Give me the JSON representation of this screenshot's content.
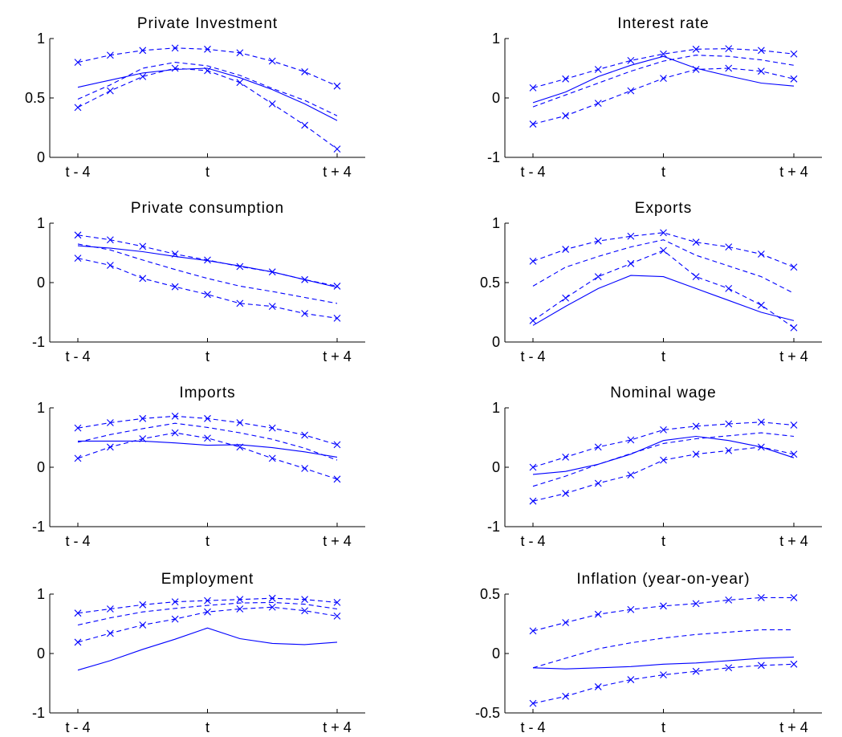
{
  "chart_data": [
    {
      "type": "line",
      "title": "Private Investment",
      "x": [
        -4,
        -3,
        -2,
        -1,
        0,
        1,
        2,
        3,
        4
      ],
      "xticks": [
        "t - 4",
        "t",
        "t + 4"
      ],
      "ylim": [
        0,
        1
      ],
      "yticks": [
        "0",
        "0.5",
        "1"
      ],
      "series": [
        {
          "style": "solid",
          "values": [
            0.59,
            0.65,
            0.71,
            0.74,
            0.75,
            0.67,
            0.57,
            0.45,
            0.31
          ]
        },
        {
          "style": "dashed",
          "values": [
            0.49,
            0.61,
            0.75,
            0.8,
            0.77,
            0.69,
            0.58,
            0.48,
            0.35
          ]
        },
        {
          "style": "dashed-x",
          "values": [
            0.8,
            0.86,
            0.9,
            0.92,
            0.91,
            0.88,
            0.81,
            0.72,
            0.6
          ]
        },
        {
          "style": "dashed-x",
          "values": [
            0.42,
            0.56,
            0.68,
            0.75,
            0.73,
            0.63,
            0.45,
            0.27,
            0.07
          ]
        }
      ]
    },
    {
      "type": "line",
      "title": "Interest rate",
      "x": [
        -4,
        -3,
        -2,
        -1,
        0,
        1,
        2,
        3,
        4
      ],
      "xticks": [
        "t - 4",
        "t",
        "t + 4"
      ],
      "ylim": [
        -1,
        1
      ],
      "yticks": [
        "-1",
        "0",
        "1"
      ],
      "series": [
        {
          "style": "solid",
          "values": [
            -0.08,
            0.1,
            0.36,
            0.55,
            0.7,
            0.5,
            0.37,
            0.25,
            0.2
          ]
        },
        {
          "style": "dashed",
          "values": [
            -0.15,
            0.05,
            0.25,
            0.45,
            0.62,
            0.72,
            0.7,
            0.64,
            0.55
          ]
        },
        {
          "style": "dashed-x",
          "values": [
            0.17,
            0.32,
            0.48,
            0.63,
            0.74,
            0.82,
            0.83,
            0.8,
            0.74
          ]
        },
        {
          "style": "dashed-x",
          "values": [
            -0.44,
            -0.3,
            -0.09,
            0.12,
            0.33,
            0.48,
            0.5,
            0.45,
            0.32
          ]
        }
      ]
    },
    {
      "type": "line",
      "title": "Private consumption",
      "x": [
        -4,
        -3,
        -2,
        -1,
        0,
        1,
        2,
        3,
        4
      ],
      "xticks": [
        "t - 4",
        "t",
        "t + 4"
      ],
      "ylim": [
        -1,
        1
      ],
      "yticks": [
        "-1",
        "0",
        "1"
      ],
      "series": [
        {
          "style": "solid",
          "values": [
            0.62,
            0.58,
            0.52,
            0.44,
            0.37,
            0.28,
            0.18,
            0.05,
            -0.08
          ]
        },
        {
          "style": "dashed",
          "values": [
            0.65,
            0.55,
            0.38,
            0.22,
            0.07,
            -0.06,
            -0.15,
            -0.25,
            -0.35
          ]
        },
        {
          "style": "dashed-x",
          "values": [
            0.8,
            0.72,
            0.61,
            0.48,
            0.38,
            0.27,
            0.18,
            0.05,
            -0.06
          ]
        },
        {
          "style": "dashed-x",
          "values": [
            0.41,
            0.29,
            0.07,
            -0.07,
            -0.2,
            -0.35,
            -0.4,
            -0.52,
            -0.6
          ]
        }
      ]
    },
    {
      "type": "line",
      "title": "Exports",
      "x": [
        -4,
        -3,
        -2,
        -1,
        0,
        1,
        2,
        3,
        4
      ],
      "xticks": [
        "t - 4",
        "t",
        "t + 4"
      ],
      "ylim": [
        0,
        1
      ],
      "yticks": [
        "0",
        "0.5",
        "1"
      ],
      "series": [
        {
          "style": "solid",
          "values": [
            0.14,
            0.3,
            0.45,
            0.56,
            0.55,
            0.45,
            0.35,
            0.25,
            0.18
          ]
        },
        {
          "style": "dashed",
          "values": [
            0.47,
            0.63,
            0.72,
            0.8,
            0.86,
            0.73,
            0.64,
            0.55,
            0.41
          ]
        },
        {
          "style": "dashed-x",
          "values": [
            0.68,
            0.78,
            0.85,
            0.89,
            0.92,
            0.84,
            0.8,
            0.74,
            0.63
          ]
        },
        {
          "style": "dashed-x",
          "values": [
            0.18,
            0.37,
            0.55,
            0.66,
            0.77,
            0.55,
            0.45,
            0.31,
            0.12
          ]
        }
      ]
    },
    {
      "type": "line",
      "title": "Imports",
      "x": [
        -4,
        -3,
        -2,
        -1,
        0,
        1,
        2,
        3,
        4
      ],
      "xticks": [
        "t - 4",
        "t",
        "t + 4"
      ],
      "ylim": [
        -1,
        1
      ],
      "yticks": [
        "-1",
        "0",
        "1"
      ],
      "series": [
        {
          "style": "solid",
          "values": [
            0.44,
            0.44,
            0.44,
            0.41,
            0.37,
            0.38,
            0.33,
            0.26,
            0.17
          ]
        },
        {
          "style": "dashed",
          "values": [
            0.42,
            0.55,
            0.65,
            0.74,
            0.67,
            0.58,
            0.47,
            0.32,
            0.12
          ]
        },
        {
          "style": "dashed-x",
          "values": [
            0.66,
            0.75,
            0.82,
            0.86,
            0.82,
            0.75,
            0.66,
            0.54,
            0.38
          ]
        },
        {
          "style": "dashed-x",
          "values": [
            0.15,
            0.34,
            0.48,
            0.58,
            0.49,
            0.34,
            0.15,
            -0.02,
            -0.2
          ]
        }
      ]
    },
    {
      "type": "line",
      "title": "Nominal wage",
      "x": [
        -4,
        -3,
        -2,
        -1,
        0,
        1,
        2,
        3,
        4
      ],
      "xticks": [
        "t - 4",
        "t",
        "t + 4"
      ],
      "ylim": [
        -1,
        1
      ],
      "yticks": [
        "-1",
        "0",
        "1"
      ],
      "series": [
        {
          "style": "solid",
          "values": [
            -0.12,
            -0.07,
            0.05,
            0.22,
            0.45,
            0.52,
            0.45,
            0.34,
            0.16
          ]
        },
        {
          "style": "dashed",
          "values": [
            -0.32,
            -0.15,
            0.05,
            0.23,
            0.4,
            0.48,
            0.53,
            0.58,
            0.52
          ]
        },
        {
          "style": "dashed-x",
          "values": [
            0.0,
            0.17,
            0.34,
            0.46,
            0.63,
            0.69,
            0.73,
            0.76,
            0.71
          ]
        },
        {
          "style": "dashed-x",
          "values": [
            -0.57,
            -0.44,
            -0.27,
            -0.13,
            0.12,
            0.22,
            0.28,
            0.34,
            0.22
          ]
        }
      ]
    },
    {
      "type": "line",
      "title": "Employment",
      "x": [
        -4,
        -3,
        -2,
        -1,
        0,
        1,
        2,
        3,
        4
      ],
      "xticks": [
        "t - 4",
        "t",
        "t + 4"
      ],
      "ylim": [
        -1,
        1
      ],
      "yticks": [
        "-1",
        "0",
        "1"
      ],
      "series": [
        {
          "style": "solid",
          "values": [
            -0.28,
            -0.12,
            0.07,
            0.24,
            0.43,
            0.25,
            0.17,
            0.15,
            0.19
          ]
        },
        {
          "style": "dashed",
          "values": [
            0.48,
            0.6,
            0.7,
            0.76,
            0.81,
            0.85,
            0.86,
            0.83,
            0.75
          ]
        },
        {
          "style": "dashed-x",
          "values": [
            0.68,
            0.75,
            0.82,
            0.87,
            0.89,
            0.91,
            0.93,
            0.91,
            0.86
          ]
        },
        {
          "style": "dashed-x",
          "values": [
            0.19,
            0.34,
            0.48,
            0.58,
            0.7,
            0.75,
            0.78,
            0.72,
            0.63
          ]
        }
      ]
    },
    {
      "type": "line",
      "title": "Inflation (year-on-year)",
      "x": [
        -4,
        -3,
        -2,
        -1,
        0,
        1,
        2,
        3,
        4
      ],
      "xticks": [
        "t - 4",
        "t",
        "t + 4"
      ],
      "ylim": [
        -0.5,
        0.5
      ],
      "yticks": [
        "-0.5",
        "0",
        "0.5"
      ],
      "series": [
        {
          "style": "solid",
          "values": [
            -0.12,
            -0.13,
            -0.12,
            -0.11,
            -0.09,
            -0.08,
            -0.06,
            -0.04,
            -0.03
          ]
        },
        {
          "style": "dashed",
          "values": [
            -0.12,
            -0.04,
            0.04,
            0.09,
            0.13,
            0.16,
            0.18,
            0.2,
            0.2
          ]
        },
        {
          "style": "dashed-x",
          "values": [
            0.19,
            0.26,
            0.33,
            0.37,
            0.4,
            0.42,
            0.45,
            0.47,
            0.47
          ]
        },
        {
          "style": "dashed-x",
          "values": [
            -0.42,
            -0.36,
            -0.28,
            -0.22,
            -0.18,
            -0.15,
            -0.12,
            -0.1,
            -0.09
          ]
        }
      ]
    }
  ]
}
